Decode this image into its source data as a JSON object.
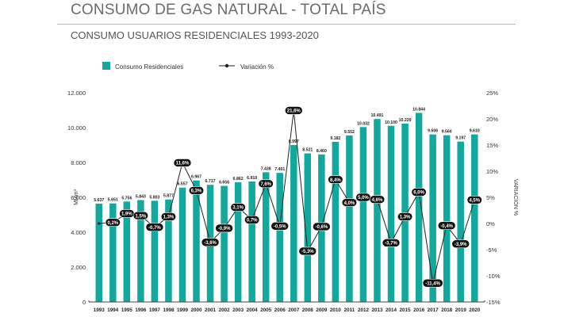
{
  "title": "CONSUMO DE GAS NATURAL - TOTAL PAÍS",
  "subtitle": "CONSUMO USUARIOS RESIDENCIALES 1993-2020",
  "colors": {
    "bar": "#13a89e",
    "line": "#222222",
    "pill": "#111111",
    "pill_text": "#ffffff"
  },
  "chart_data": {
    "type": "bar",
    "categories": [
      "1993",
      "1994",
      "1995",
      "1996",
      "1997",
      "1998",
      "1999",
      "2000",
      "2001",
      "2002",
      "2003",
      "2004",
      "2005",
      "2006",
      "2007",
      "2008",
      "2009",
      "2010",
      "2011",
      "2012",
      "2013",
      "2014",
      "2015",
      "2016",
      "2017",
      "2018",
      "2019",
      "2020"
    ],
    "series": [
      {
        "name": "Consumo Residenciales",
        "type": "bar",
        "axis": "left",
        "values": [
          5637,
          5651,
          5756,
          5843,
          5803,
          5877,
          6557,
          6967,
          6717,
          6656,
          6862,
          6910,
          7438,
          7401,
          8997,
          8521,
          8460,
          9182,
          9552,
          10032,
          10491,
          10100,
          10229,
          10844,
          9606,
          9560,
          9197,
          9610
        ],
        "labels": [
          "5.637",
          "5.651",
          "5.756",
          "5.843",
          "5.803",
          "5.877",
          "6.557",
          "6.967",
          "6.717",
          "6.656",
          "6.862",
          "6.910",
          "7.438",
          "7.401",
          "8.997",
          "8.521",
          "8.460",
          "9.182",
          "9.552",
          "10.032",
          "10.491",
          "10.100",
          "10.229",
          "10.844",
          "9.606",
          "9.560",
          "9.197",
          "9.610"
        ]
      },
      {
        "name": "Variación %",
        "type": "line",
        "axis": "right",
        "values": [
          0.0,
          0.2,
          1.9,
          1.5,
          -0.7,
          1.3,
          11.6,
          6.3,
          -3.6,
          -0.9,
          3.1,
          0.7,
          7.6,
          -0.5,
          21.6,
          -5.3,
          -0.6,
          8.4,
          4.0,
          5.0,
          4.6,
          -3.7,
          1.3,
          6.0,
          -11.4,
          -0.4,
          -3.9,
          4.5
        ],
        "labels": [
          "",
          "0,2%",
          "1,9%",
          "1,5%",
          "-0,7%",
          "1,3%",
          "11,6%",
          "6,3%",
          "-3,6%",
          "-0,9%",
          "3,1%",
          "0,7%",
          "7,6%",
          "-0,5%",
          "21,6%",
          "-5,3%",
          "-0,6%",
          "8,4%",
          "4,0%",
          "5,0%",
          "4,6%",
          "-3,7%",
          "1,3%",
          "6,0%",
          "-11,4%",
          "-0,4%",
          "-3,9%",
          "4,5%"
        ]
      }
    ],
    "ylabel": "MMm³",
    "y2label": "VARIACIÓN %",
    "ylim": [
      0,
      12000
    ],
    "y2lim": [
      -15,
      25
    ],
    "yticks": [
      "0",
      "2.000",
      "4.000",
      "6.000",
      "8.000",
      "10.000",
      "12.000"
    ],
    "y2ticks": [
      "-15%",
      "-10%",
      "-5%",
      "0%",
      "5%",
      "10%",
      "15%",
      "20%",
      "25%"
    ],
    "grid": false,
    "legend_position": "top-left"
  }
}
